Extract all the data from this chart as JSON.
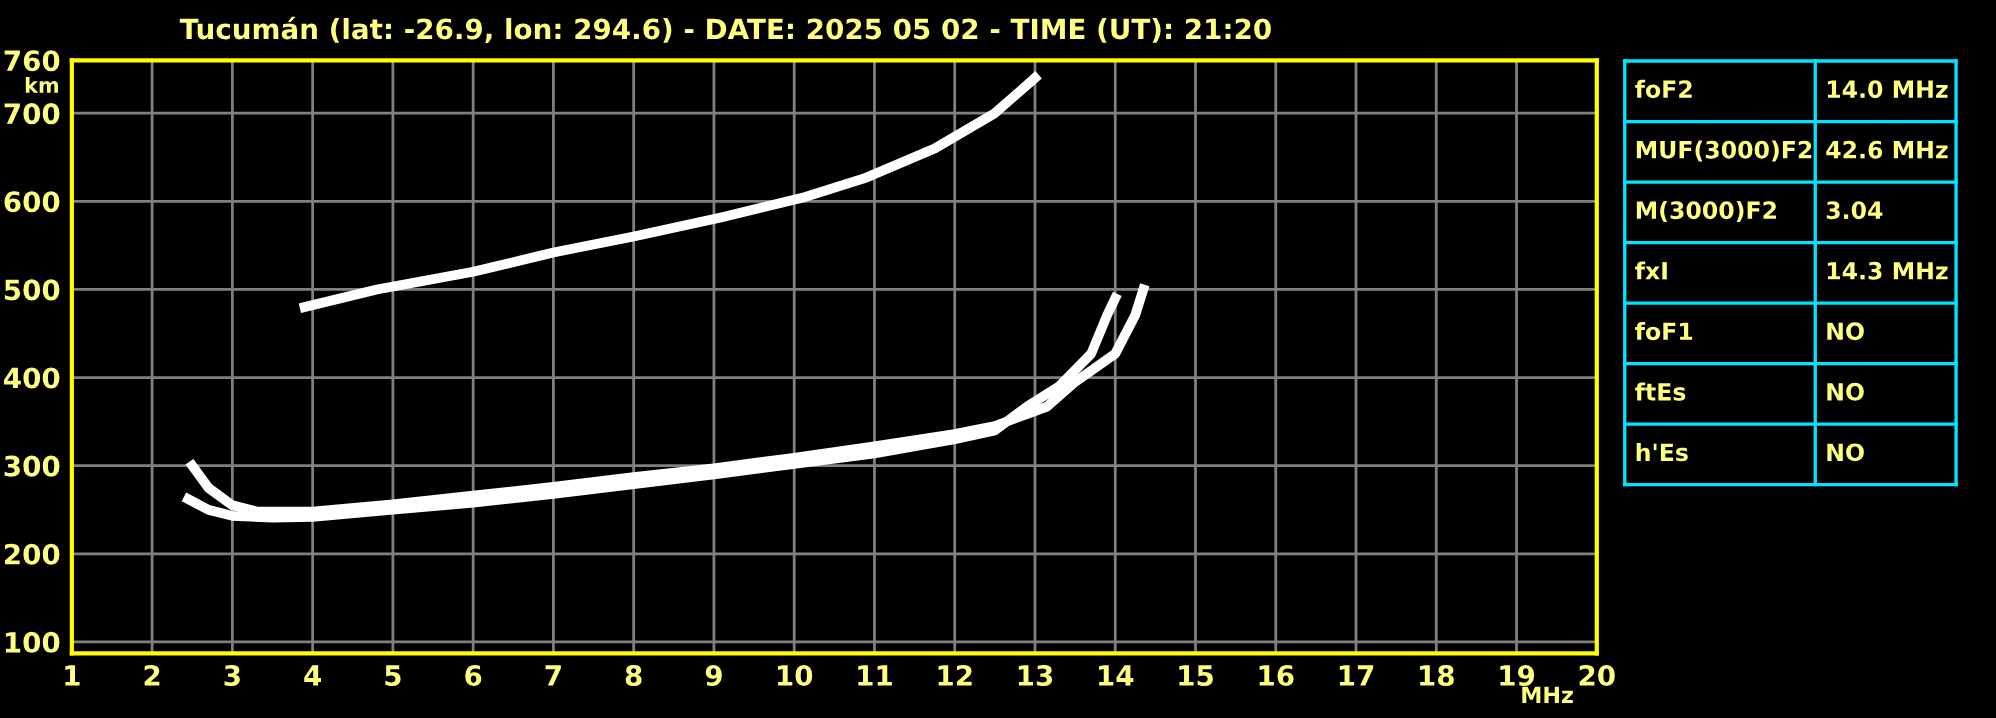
{
  "chart_data": [
    {
      "type": "line",
      "title": "Tucumán (lat: -26.9, lon: 294.6) - DATE: 2025 05 02 - TIME (UT): 21:20",
      "xlabel": "MHz",
      "ylabel": "km",
      "xlim": [
        1,
        20
      ],
      "xticks": [
        1,
        2,
        3,
        4,
        5,
        6,
        7,
        8,
        9,
        10,
        11,
        12,
        13,
        14,
        15,
        16,
        17,
        18,
        19,
        20
      ],
      "ylim": [
        87,
        760
      ],
      "yticks": [
        100,
        200,
        300,
        400,
        500,
        600,
        700,
        760
      ],
      "grid": true,
      "marker": "none",
      "line_style": "solid",
      "series": [
        {
          "color": "#ffffff",
          "x": [
            2.45,
            2.7,
            3.0,
            3.5,
            4.0,
            5.0,
            6.0,
            7.0,
            8.0,
            9.0,
            10.0,
            11.0,
            12.0,
            12.5,
            12.9,
            13.3,
            13.7,
            13.9,
            14.0
          ],
          "values": [
            262,
            250,
            243,
            241,
            242,
            250,
            258,
            268,
            279,
            290,
            302,
            314,
            330,
            340,
            367,
            390,
            427,
            471,
            490
          ]
        },
        {
          "color": "#ffffff",
          "x": [
            2.5,
            2.7,
            3.0,
            3.3,
            4.0,
            5.0,
            6.0,
            7.0,
            8.0,
            9.0,
            10.0,
            11.0,
            12.0,
            12.5,
            13.15,
            13.5,
            14.0,
            14.25,
            14.35
          ],
          "values": [
            300,
            275,
            255,
            248,
            248,
            256,
            266,
            276,
            287,
            297,
            309,
            322,
            336,
            345,
            367,
            395,
            427,
            471,
            500
          ]
        },
        {
          "color": "#ffffff",
          "x": [
            3.9,
            4.8,
            6.0,
            7.0,
            8.0,
            9.1,
            10.1,
            10.9,
            11.75,
            12.5,
            13.0
          ],
          "values": [
            480,
            500,
            520,
            542,
            560,
            582,
            604,
            627,
            660,
            700,
            740
          ]
        }
      ]
    },
    {
      "type": "other",
      "annotations": [
        "foF2",
        "14.0 MHz",
        "MUF(3000)F2",
        "42.6 MHz",
        "M(3000)F2",
        "3.04",
        "fxI",
        "14.3 MHz",
        "foF1",
        "NO",
        "ftEs",
        "NO",
        "h'Es",
        "NO"
      ]
    }
  ]
}
